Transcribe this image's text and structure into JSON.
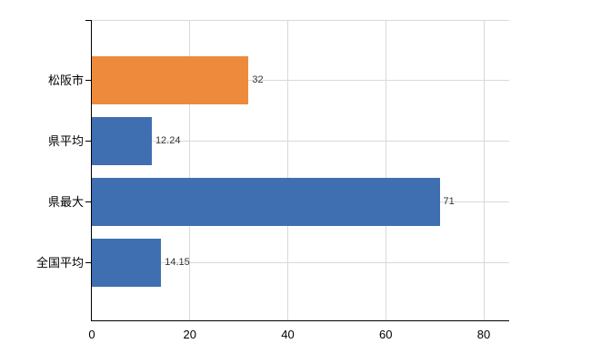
{
  "chart_data": {
    "type": "bar",
    "orientation": "horizontal",
    "title": "",
    "xlabel": "",
    "ylabel": "",
    "categories": [
      "松阪市",
      "県平均",
      "県最大",
      "全国平均"
    ],
    "values": [
      32,
      12.24,
      71,
      14.15
    ],
    "value_labels": [
      "32",
      "12.24",
      "71",
      "14.15"
    ],
    "bar_colors": [
      "#ee8a3b",
      "#3f6eb1",
      "#3f6eb1",
      "#3f6eb1"
    ],
    "x_ticks": [
      0,
      20,
      40,
      60,
      80
    ],
    "x_tick_labels": [
      "0",
      "20",
      "40",
      "60",
      "80"
    ],
    "xlim": [
      0,
      85.2
    ],
    "grid": true,
    "legend_position": "none",
    "colors": {
      "highlight_bar": "#ee8a3b",
      "default_bar": "#3f6eb1",
      "gridline": "#d9d9d9",
      "axis": "#000000",
      "category_label": "#000000",
      "value_label": "#333333",
      "background": "#ffffff"
    }
  }
}
